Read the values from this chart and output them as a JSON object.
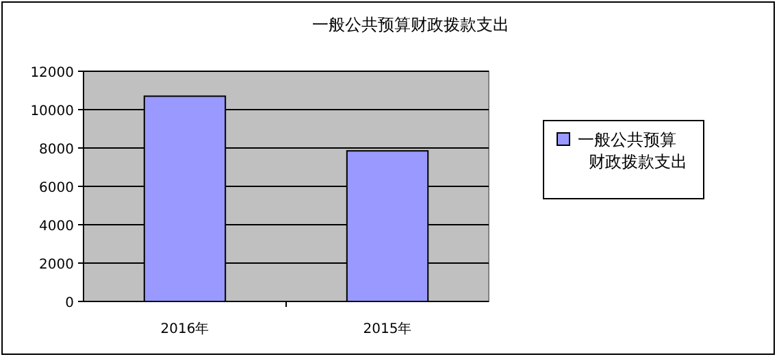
{
  "chart_data": {
    "type": "bar",
    "title": "一般公共预算财政拨款支出",
    "categories": [
      "2016年",
      "2015年"
    ],
    "series": [
      {
        "name": "一般公共预算财政拨款支出",
        "color": "#9999ff",
        "values": [
          10700,
          7850
        ]
      }
    ],
    "ylim": [
      0,
      12000
    ],
    "yticks": [
      0,
      2000,
      4000,
      6000,
      8000,
      10000,
      12000
    ],
    "grid": "y",
    "legend": "right"
  }
}
